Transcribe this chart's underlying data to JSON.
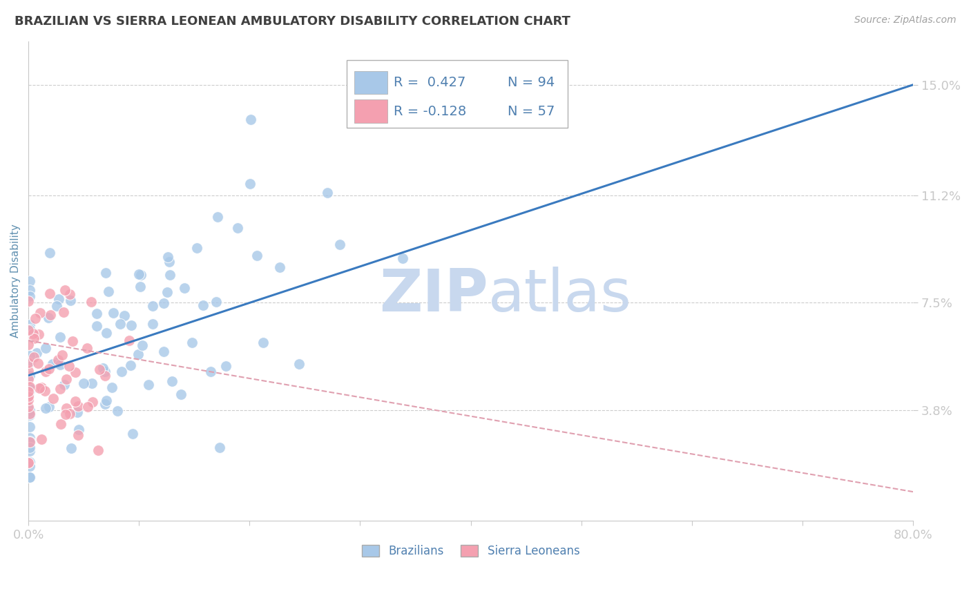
{
  "title": "BRAZILIAN VS SIERRA LEONEAN AMBULATORY DISABILITY CORRELATION CHART",
  "source": "Source: ZipAtlas.com",
  "ylabel": "Ambulatory Disability",
  "xlim": [
    0.0,
    80.0
  ],
  "ylim": [
    0.0,
    16.5
  ],
  "yticks": [
    3.8,
    7.5,
    11.2,
    15.0
  ],
  "ytick_labels": [
    "3.8%",
    "7.5%",
    "11.2%",
    "15.0%"
  ],
  "xtick_labels": [
    "0.0%",
    "80.0%"
  ],
  "r_brazilian": 0.427,
  "n_brazilian": 94,
  "r_sierraleonean": -0.128,
  "n_sierraleonean": 57,
  "color_brazilian": "#a8c8e8",
  "color_sierraleonean": "#f4a0b0",
  "trendline_brazilian_color": "#3a7abf",
  "trendline_sl_color": "#e0a0b0",
  "watermark_zip": "ZIP",
  "watermark_atlas": "atlas",
  "watermark_color": "#c8d8ee",
  "background_color": "#ffffff",
  "title_color": "#404040",
  "source_color": "#a0a0a0",
  "axis_label_color": "#6090b0",
  "tick_label_color": "#5080b0",
  "legend_box_color_brazilian": "#a8c8e8",
  "legend_box_color_sl": "#f4a0b0",
  "legend_text_color": "#5080b0",
  "trendline_br_x0": 0,
  "trendline_br_y0": 5.0,
  "trendline_br_x1": 80,
  "trendline_br_y1": 15.0,
  "trendline_sl_x0": 0,
  "trendline_sl_y0": 6.2,
  "trendline_sl_x1": 80,
  "trendline_sl_y1": 1.0,
  "br_mean_x": 8,
  "br_std_x": 9,
  "br_mean_y": 6.5,
  "br_std_y": 2.2,
  "sl_mean_x": 2.5,
  "sl_std_x": 2.5,
  "sl_mean_y": 5.2,
  "sl_std_y": 1.6
}
